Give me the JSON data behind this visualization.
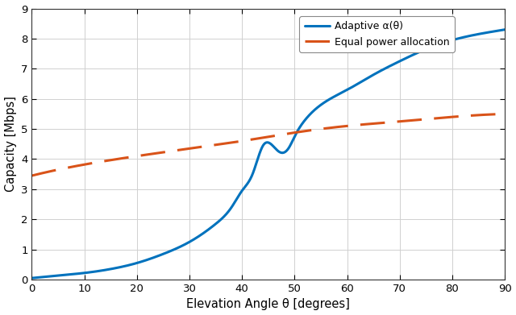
{
  "title": "",
  "xlabel": "Elevation Angle θ [degrees]",
  "ylabel": "Capacity [Mbps]",
  "xlim": [
    0,
    90
  ],
  "ylim": [
    0,
    9
  ],
  "xticks": [
    0,
    10,
    20,
    30,
    40,
    50,
    60,
    70,
    80,
    90
  ],
  "yticks": [
    0,
    1,
    2,
    3,
    4,
    5,
    6,
    7,
    8,
    9
  ],
  "blue_color": "#0072BD",
  "orange_color": "#D95319",
  "blue_label": "Adaptive α(θ)",
  "orange_label": "Equal power allocation",
  "background_color": "#ffffff",
  "grid_color": "#d0d0d0",
  "blue_pts_x": [
    0,
    3,
    6,
    10,
    15,
    20,
    25,
    30,
    35,
    38,
    40,
    42,
    44,
    45.5,
    47,
    48,
    49,
    50,
    52,
    55,
    60,
    65,
    70,
    75,
    80,
    85,
    90
  ],
  "blue_pts_y": [
    0.05,
    0.1,
    0.15,
    0.22,
    0.35,
    0.55,
    0.85,
    1.25,
    1.85,
    2.4,
    2.95,
    3.5,
    4.45,
    4.5,
    4.25,
    4.22,
    4.4,
    4.75,
    5.3,
    5.8,
    6.3,
    6.8,
    7.25,
    7.65,
    7.95,
    8.15,
    8.3
  ],
  "orange_pts_x": [
    0,
    10,
    20,
    30,
    40,
    50,
    60,
    70,
    80,
    90
  ],
  "orange_pts_y": [
    3.45,
    3.82,
    4.1,
    4.35,
    4.6,
    4.88,
    5.1,
    5.25,
    5.4,
    5.5
  ]
}
